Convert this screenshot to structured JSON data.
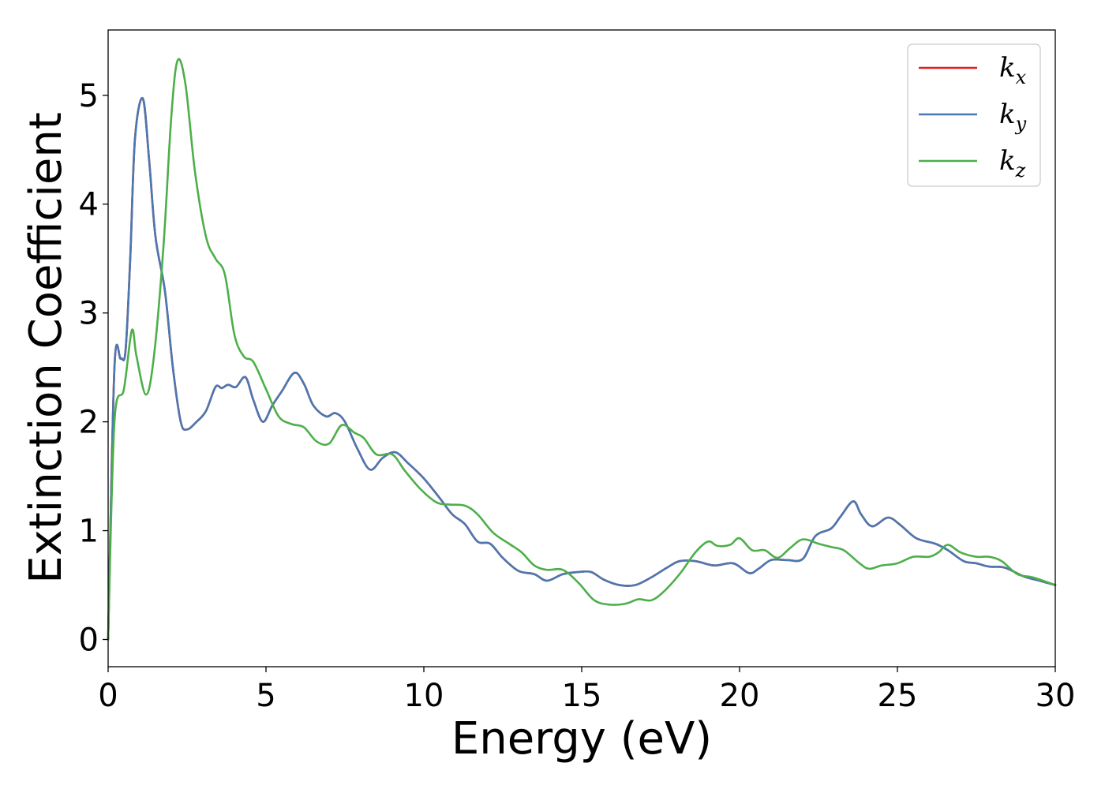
{
  "chart_data": {
    "type": "line",
    "title": "",
    "xlabel": "Energy (eV)",
    "ylabel": "Extinction Coefficient",
    "xlim": [
      0,
      30
    ],
    "ylim": [
      -0.25,
      5.6
    ],
    "xticks": [
      0,
      5,
      10,
      15,
      20,
      25,
      30
    ],
    "yticks": [
      0,
      1,
      2,
      3,
      4,
      5
    ],
    "grid": false,
    "legend_position": "top-right",
    "series": [
      {
        "name": "k_x",
        "legend_base": "k",
        "legend_sub": "x",
        "color": "#e41a1c",
        "points": [
          [
            0,
            0
          ],
          [
            0.2,
            2.5
          ],
          [
            0.4,
            2.58
          ],
          [
            0.55,
            2.65
          ],
          [
            0.7,
            3.5
          ],
          [
            0.85,
            4.6
          ],
          [
            1.1,
            4.97
          ],
          [
            1.3,
            4.4
          ],
          [
            1.5,
            3.7
          ],
          [
            1.8,
            3.2
          ],
          [
            2.05,
            2.5
          ],
          [
            2.3,
            2.0
          ],
          [
            2.5,
            1.93
          ],
          [
            2.8,
            2.0
          ],
          [
            3.1,
            2.1
          ],
          [
            3.4,
            2.32
          ],
          [
            3.6,
            2.31
          ],
          [
            3.8,
            2.34
          ],
          [
            4.05,
            2.32
          ],
          [
            4.35,
            2.41
          ],
          [
            4.6,
            2.2
          ],
          [
            4.9,
            2.0
          ],
          [
            5.2,
            2.15
          ],
          [
            5.5,
            2.28
          ],
          [
            5.9,
            2.45
          ],
          [
            6.2,
            2.35
          ],
          [
            6.5,
            2.15
          ],
          [
            6.9,
            2.05
          ],
          [
            7.2,
            2.08
          ],
          [
            7.5,
            2.0
          ],
          [
            7.9,
            1.75
          ],
          [
            8.3,
            1.56
          ],
          [
            8.7,
            1.67
          ],
          [
            9.1,
            1.72
          ],
          [
            9.5,
            1.62
          ],
          [
            10.0,
            1.48
          ],
          [
            10.5,
            1.3
          ],
          [
            10.9,
            1.15
          ],
          [
            11.3,
            1.06
          ],
          [
            11.7,
            0.9
          ],
          [
            12.1,
            0.88
          ],
          [
            12.5,
            0.75
          ],
          [
            13.0,
            0.63
          ],
          [
            13.5,
            0.6
          ],
          [
            13.9,
            0.54
          ],
          [
            14.4,
            0.6
          ],
          [
            14.9,
            0.62
          ],
          [
            15.3,
            0.62
          ],
          [
            15.7,
            0.55
          ],
          [
            16.2,
            0.5
          ],
          [
            16.7,
            0.5
          ],
          [
            17.2,
            0.57
          ],
          [
            17.7,
            0.66
          ],
          [
            18.1,
            0.72
          ],
          [
            18.6,
            0.72
          ],
          [
            19.2,
            0.68
          ],
          [
            19.8,
            0.7
          ],
          [
            20.3,
            0.61
          ],
          [
            20.6,
            0.65
          ],
          [
            21.0,
            0.73
          ],
          [
            21.5,
            0.73
          ],
          [
            22.0,
            0.74
          ],
          [
            22.4,
            0.95
          ],
          [
            22.9,
            1.02
          ],
          [
            23.2,
            1.13
          ],
          [
            23.6,
            1.27
          ],
          [
            23.85,
            1.15
          ],
          [
            24.2,
            1.04
          ],
          [
            24.7,
            1.12
          ],
          [
            25.1,
            1.05
          ],
          [
            25.6,
            0.93
          ],
          [
            26.2,
            0.88
          ],
          [
            26.6,
            0.82
          ],
          [
            27.1,
            0.72
          ],
          [
            27.5,
            0.7
          ],
          [
            27.9,
            0.67
          ],
          [
            28.4,
            0.66
          ],
          [
            29.0,
            0.58
          ],
          [
            29.5,
            0.54
          ],
          [
            30.0,
            0.5
          ]
        ]
      },
      {
        "name": "k_y",
        "legend_base": "k",
        "legend_sub": "y",
        "color": "#4a78b0",
        "points": [
          [
            0,
            0
          ],
          [
            0.2,
            2.5
          ],
          [
            0.4,
            2.58
          ],
          [
            0.55,
            2.65
          ],
          [
            0.7,
            3.5
          ],
          [
            0.85,
            4.6
          ],
          [
            1.1,
            4.97
          ],
          [
            1.3,
            4.4
          ],
          [
            1.5,
            3.7
          ],
          [
            1.8,
            3.2
          ],
          [
            2.05,
            2.5
          ],
          [
            2.3,
            2.0
          ],
          [
            2.5,
            1.93
          ],
          [
            2.8,
            2.0
          ],
          [
            3.1,
            2.1
          ],
          [
            3.4,
            2.32
          ],
          [
            3.6,
            2.31
          ],
          [
            3.8,
            2.34
          ],
          [
            4.05,
            2.32
          ],
          [
            4.35,
            2.41
          ],
          [
            4.6,
            2.2
          ],
          [
            4.9,
            2.0
          ],
          [
            5.2,
            2.15
          ],
          [
            5.5,
            2.28
          ],
          [
            5.9,
            2.45
          ],
          [
            6.2,
            2.35
          ],
          [
            6.5,
            2.15
          ],
          [
            6.9,
            2.05
          ],
          [
            7.2,
            2.08
          ],
          [
            7.5,
            2.0
          ],
          [
            7.9,
            1.75
          ],
          [
            8.3,
            1.56
          ],
          [
            8.7,
            1.67
          ],
          [
            9.1,
            1.72
          ],
          [
            9.5,
            1.62
          ],
          [
            10.0,
            1.48
          ],
          [
            10.5,
            1.3
          ],
          [
            10.9,
            1.15
          ],
          [
            11.3,
            1.06
          ],
          [
            11.7,
            0.9
          ],
          [
            12.1,
            0.88
          ],
          [
            12.5,
            0.75
          ],
          [
            13.0,
            0.63
          ],
          [
            13.5,
            0.6
          ],
          [
            13.9,
            0.54
          ],
          [
            14.4,
            0.6
          ],
          [
            14.9,
            0.62
          ],
          [
            15.3,
            0.62
          ],
          [
            15.7,
            0.55
          ],
          [
            16.2,
            0.5
          ],
          [
            16.7,
            0.5
          ],
          [
            17.2,
            0.57
          ],
          [
            17.7,
            0.66
          ],
          [
            18.1,
            0.72
          ],
          [
            18.6,
            0.72
          ],
          [
            19.2,
            0.68
          ],
          [
            19.8,
            0.7
          ],
          [
            20.3,
            0.61
          ],
          [
            20.6,
            0.65
          ],
          [
            21.0,
            0.73
          ],
          [
            21.5,
            0.73
          ],
          [
            22.0,
            0.74
          ],
          [
            22.4,
            0.95
          ],
          [
            22.9,
            1.02
          ],
          [
            23.2,
            1.13
          ],
          [
            23.6,
            1.27
          ],
          [
            23.85,
            1.15
          ],
          [
            24.2,
            1.04
          ],
          [
            24.7,
            1.12
          ],
          [
            25.1,
            1.05
          ],
          [
            25.6,
            0.93
          ],
          [
            26.2,
            0.88
          ],
          [
            26.6,
            0.82
          ],
          [
            27.1,
            0.72
          ],
          [
            27.5,
            0.7
          ],
          [
            27.9,
            0.67
          ],
          [
            28.4,
            0.66
          ],
          [
            29.0,
            0.58
          ],
          [
            29.5,
            0.54
          ],
          [
            30.0,
            0.5
          ]
        ]
      },
      {
        "name": "k_z",
        "legend_base": "k",
        "legend_sub": "z",
        "color": "#4daf4a",
        "points": [
          [
            0,
            0
          ],
          [
            0.2,
            2.0
          ],
          [
            0.5,
            2.3
          ],
          [
            0.75,
            2.84
          ],
          [
            0.9,
            2.6
          ],
          [
            1.2,
            2.25
          ],
          [
            1.45,
            2.6
          ],
          [
            1.75,
            3.6
          ],
          [
            2.0,
            4.8
          ],
          [
            2.2,
            5.32
          ],
          [
            2.45,
            5.1
          ],
          [
            2.75,
            4.3
          ],
          [
            3.1,
            3.7
          ],
          [
            3.4,
            3.5
          ],
          [
            3.7,
            3.35
          ],
          [
            4.0,
            2.8
          ],
          [
            4.3,
            2.6
          ],
          [
            4.6,
            2.55
          ],
          [
            5.0,
            2.3
          ],
          [
            5.4,
            2.05
          ],
          [
            5.8,
            1.98
          ],
          [
            6.2,
            1.95
          ],
          [
            6.6,
            1.82
          ],
          [
            7.0,
            1.8
          ],
          [
            7.4,
            1.97
          ],
          [
            7.8,
            1.9
          ],
          [
            8.1,
            1.85
          ],
          [
            8.5,
            1.7
          ],
          [
            9.0,
            1.7
          ],
          [
            9.4,
            1.55
          ],
          [
            9.9,
            1.38
          ],
          [
            10.4,
            1.26
          ],
          [
            10.8,
            1.24
          ],
          [
            11.3,
            1.23
          ],
          [
            11.7,
            1.15
          ],
          [
            12.2,
            0.98
          ],
          [
            12.7,
            0.88
          ],
          [
            13.1,
            0.8
          ],
          [
            13.5,
            0.68
          ],
          [
            13.9,
            0.64
          ],
          [
            14.4,
            0.64
          ],
          [
            14.9,
            0.52
          ],
          [
            15.4,
            0.36
          ],
          [
            15.9,
            0.32
          ],
          [
            16.4,
            0.33
          ],
          [
            16.8,
            0.37
          ],
          [
            17.2,
            0.36
          ],
          [
            17.6,
            0.44
          ],
          [
            18.1,
            0.6
          ],
          [
            18.6,
            0.8
          ],
          [
            19.0,
            0.9
          ],
          [
            19.3,
            0.86
          ],
          [
            19.7,
            0.87
          ],
          [
            20.0,
            0.93
          ],
          [
            20.4,
            0.82
          ],
          [
            20.8,
            0.82
          ],
          [
            21.2,
            0.75
          ],
          [
            21.6,
            0.84
          ],
          [
            22.0,
            0.92
          ],
          [
            22.5,
            0.88
          ],
          [
            22.9,
            0.85
          ],
          [
            23.3,
            0.82
          ],
          [
            23.8,
            0.7
          ],
          [
            24.1,
            0.65
          ],
          [
            24.5,
            0.68
          ],
          [
            25.0,
            0.7
          ],
          [
            25.5,
            0.76
          ],
          [
            26.0,
            0.76
          ],
          [
            26.3,
            0.8
          ],
          [
            26.6,
            0.87
          ],
          [
            27.0,
            0.8
          ],
          [
            27.5,
            0.76
          ],
          [
            27.9,
            0.76
          ],
          [
            28.3,
            0.72
          ],
          [
            28.8,
            0.6
          ],
          [
            29.3,
            0.57
          ],
          [
            30.0,
            0.5
          ]
        ]
      }
    ]
  }
}
